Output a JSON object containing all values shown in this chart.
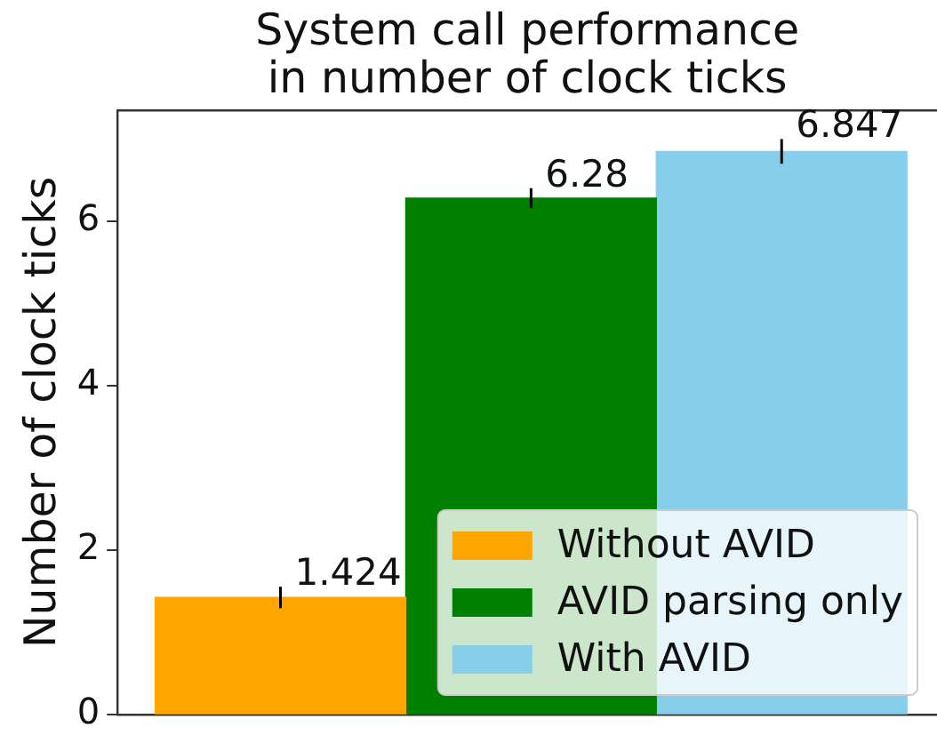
{
  "chart_data": {
    "type": "bar",
    "title": "System call performance\nin number of clock ticks",
    "ylabel": "Number of clock ticks",
    "categories": [
      null,
      null,
      null
    ],
    "series": [
      {
        "name": "Without AVID",
        "color": "#ffa500",
        "values": [
          1.424,
          null,
          null
        ],
        "errors": [
          0.13,
          null,
          null
        ]
      },
      {
        "name": "AVID parsing only",
        "color": "#008000",
        "values": [
          null,
          6.28,
          null
        ],
        "errors": [
          null,
          0.12,
          null
        ]
      },
      {
        "name": "With AVID",
        "color": "#87ceeb",
        "values": [
          null,
          null,
          6.847
        ],
        "errors": [
          null,
          null,
          0.15
        ]
      }
    ],
    "ylim": [
      0,
      7.35
    ],
    "yticks": [
      0,
      2,
      4,
      6
    ],
    "grid": false,
    "legend": "bottom right",
    "tick_labels": "y",
    "data_labels": true
  }
}
